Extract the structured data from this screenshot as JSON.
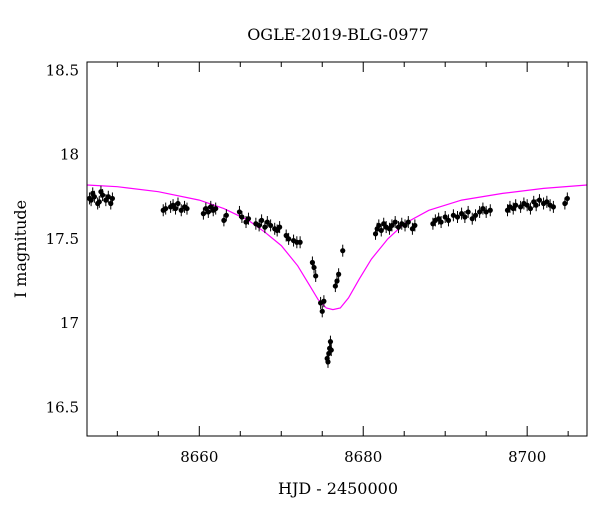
{
  "chart_data": {
    "type": "scatter",
    "title": "OGLE-2019-BLG-0977",
    "xlabel": "HJD - 2450000",
    "ylabel": "I magnitude",
    "xlim": [
      8646.3,
      8707.3
    ],
    "ylim": [
      18.55,
      16.33
    ],
    "y_inverted": true,
    "x_ticks": [
      8660,
      8680,
      8700
    ],
    "y_ticks": [
      16.5,
      17,
      17.5,
      18,
      18.5
    ],
    "x_tick_labels": [
      "8660",
      "8680",
      "8700"
    ],
    "y_tick_labels": [
      "16.5",
      "17",
      "17.5",
      "18",
      "18.5"
    ],
    "grid": false,
    "colors": {
      "data": "#000000",
      "model": "#ff00ff"
    },
    "series": [
      {
        "type": "scatter_errorbar",
        "points": [
          [
            8646.6,
            17.74
          ],
          [
            8646.8,
            17.73
          ],
          [
            8647.0,
            17.77
          ],
          [
            8647.2,
            17.75
          ],
          [
            8647.6,
            17.71
          ],
          [
            8647.8,
            17.72
          ],
          [
            8648.0,
            17.78
          ],
          [
            8648.2,
            17.76
          ],
          [
            8648.6,
            17.73
          ],
          [
            8648.9,
            17.75
          ],
          [
            8649.2,
            17.71
          ],
          [
            8649.4,
            17.74
          ],
          [
            8655.6,
            17.67
          ],
          [
            8655.9,
            17.68
          ],
          [
            8656.5,
            17.69
          ],
          [
            8656.8,
            17.7
          ],
          [
            8657.1,
            17.68
          ],
          [
            8657.4,
            17.71
          ],
          [
            8657.8,
            17.67
          ],
          [
            8658.2,
            17.69
          ],
          [
            8658.5,
            17.68
          ],
          [
            8660.5,
            17.65
          ],
          [
            8660.8,
            17.68
          ],
          [
            8661.1,
            17.66
          ],
          [
            8661.4,
            17.69
          ],
          [
            8661.7,
            17.67
          ],
          [
            8662.0,
            17.68
          ],
          [
            8663.0,
            17.61
          ],
          [
            8663.3,
            17.64
          ],
          [
            8664.9,
            17.66
          ],
          [
            8665.2,
            17.63
          ],
          [
            8665.7,
            17.6
          ],
          [
            8666.0,
            17.62
          ],
          [
            8666.9,
            17.59
          ],
          [
            8667.3,
            17.58
          ],
          [
            8667.6,
            17.61
          ],
          [
            8668.0,
            17.57
          ],
          [
            8668.3,
            17.6
          ],
          [
            8668.7,
            17.58
          ],
          [
            8669.2,
            17.56
          ],
          [
            8669.5,
            17.55
          ],
          [
            8669.8,
            17.57
          ],
          [
            8670.6,
            17.52
          ],
          [
            8670.9,
            17.5
          ],
          [
            8671.5,
            17.49
          ],
          [
            8671.9,
            17.48
          ],
          [
            8672.3,
            17.48
          ],
          [
            8673.8,
            17.36
          ],
          [
            8674.0,
            17.33
          ],
          [
            8674.2,
            17.28
          ],
          [
            8674.8,
            17.12
          ],
          [
            8675.0,
            17.07
          ],
          [
            8675.2,
            17.13
          ],
          [
            8675.6,
            16.79
          ],
          [
            8675.7,
            16.77
          ],
          [
            8675.8,
            16.82
          ],
          [
            8675.9,
            16.85
          ],
          [
            8676.0,
            16.89
          ],
          [
            8676.1,
            16.84
          ],
          [
            8676.6,
            17.22
          ],
          [
            8676.8,
            17.25
          ],
          [
            8677.0,
            17.29
          ],
          [
            8677.5,
            17.43
          ],
          [
            8681.5,
            17.53
          ],
          [
            8681.7,
            17.56
          ],
          [
            8681.9,
            17.58
          ],
          [
            8682.2,
            17.55
          ],
          [
            8682.5,
            17.59
          ],
          [
            8682.8,
            17.57
          ],
          [
            8683.2,
            17.56
          ],
          [
            8683.5,
            17.58
          ],
          [
            8683.9,
            17.6
          ],
          [
            8684.3,
            17.57
          ],
          [
            8684.7,
            17.59
          ],
          [
            8685.1,
            17.58
          ],
          [
            8685.5,
            17.6
          ],
          [
            8686.0,
            17.56
          ],
          [
            8686.3,
            17.58
          ],
          [
            8688.5,
            17.59
          ],
          [
            8688.8,
            17.61
          ],
          [
            8689.2,
            17.62
          ],
          [
            8689.5,
            17.6
          ],
          [
            8690.0,
            17.63
          ],
          [
            8690.4,
            17.61
          ],
          [
            8691.0,
            17.64
          ],
          [
            8691.5,
            17.63
          ],
          [
            8692.0,
            17.65
          ],
          [
            8692.4,
            17.63
          ],
          [
            8692.8,
            17.66
          ],
          [
            8693.3,
            17.62
          ],
          [
            8693.7,
            17.64
          ],
          [
            8694.2,
            17.66
          ],
          [
            8694.6,
            17.68
          ],
          [
            8695.0,
            17.66
          ],
          [
            8695.5,
            17.67
          ],
          [
            8697.6,
            17.67
          ],
          [
            8697.9,
            17.69
          ],
          [
            8698.3,
            17.68
          ],
          [
            8698.6,
            17.7
          ],
          [
            8699.2,
            17.69
          ],
          [
            8699.6,
            17.71
          ],
          [
            8700.0,
            17.7
          ],
          [
            8700.4,
            17.68
          ],
          [
            8700.8,
            17.72
          ],
          [
            8701.1,
            17.7
          ],
          [
            8701.5,
            17.73
          ],
          [
            8702.0,
            17.71
          ],
          [
            8702.4,
            17.72
          ],
          [
            8702.8,
            17.7
          ],
          [
            8703.2,
            17.69
          ],
          [
            8704.6,
            17.71
          ],
          [
            8704.9,
            17.74
          ]
        ]
      },
      {
        "type": "line",
        "points": [
          [
            8646.3,
            17.82
          ],
          [
            8650,
            17.81
          ],
          [
            8655,
            17.78
          ],
          [
            8660,
            17.73
          ],
          [
            8663,
            17.68
          ],
          [
            8666,
            17.61
          ],
          [
            8668,
            17.54
          ],
          [
            8670,
            17.46
          ],
          [
            8672,
            17.34
          ],
          [
            8673.5,
            17.22
          ],
          [
            8674.5,
            17.14
          ],
          [
            8675.5,
            17.09
          ],
          [
            8676.3,
            17.08
          ],
          [
            8677.2,
            17.09
          ],
          [
            8678.2,
            17.15
          ],
          [
            8679.5,
            17.26
          ],
          [
            8681,
            17.38
          ],
          [
            8683,
            17.5
          ],
          [
            8685,
            17.59
          ],
          [
            8688,
            17.67
          ],
          [
            8692,
            17.73
          ],
          [
            8697,
            17.77
          ],
          [
            8702,
            17.8
          ],
          [
            8707.3,
            17.82
          ]
        ]
      }
    ]
  }
}
